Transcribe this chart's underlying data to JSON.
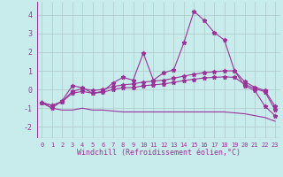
{
  "xlabel": "Windchill (Refroidissement éolien,°C)",
  "background_color": "#c8ecec",
  "grid_color": "#b0c8c8",
  "line_color": "#993399",
  "xlim": [
    -0.5,
    23.5
  ],
  "ylim": [
    -2.6,
    4.7
  ],
  "xticks": [
    0,
    1,
    2,
    3,
    4,
    5,
    6,
    7,
    8,
    9,
    10,
    11,
    12,
    13,
    14,
    15,
    16,
    17,
    18,
    19,
    20,
    21,
    22,
    23
  ],
  "yticks": [
    -2,
    -1,
    0,
    1,
    2,
    3,
    4
  ],
  "s1_x": [
    0,
    1,
    2,
    3,
    4,
    5,
    6,
    7,
    8,
    9,
    10,
    11,
    12,
    13,
    14,
    15,
    16,
    17,
    18,
    19,
    20,
    21,
    22,
    23
  ],
  "s1_y": [
    -0.7,
    -1.0,
    -0.6,
    0.2,
    0.1,
    -0.2,
    -0.1,
    0.35,
    0.65,
    0.5,
    1.95,
    0.5,
    0.9,
    1.05,
    2.5,
    4.2,
    3.7,
    3.05,
    2.65,
    1.0,
    0.2,
    -0.05,
    -0.9,
    -1.4
  ],
  "s2_x": [
    0,
    1,
    2,
    3,
    4,
    5,
    6,
    7,
    8,
    9,
    10,
    11,
    12,
    13,
    14,
    15,
    16,
    17,
    18,
    19,
    20,
    21,
    22,
    23
  ],
  "s2_y": [
    -0.7,
    -0.85,
    -0.65,
    -0.1,
    0.05,
    -0.05,
    0.0,
    0.15,
    0.25,
    0.3,
    0.4,
    0.45,
    0.5,
    0.6,
    0.72,
    0.82,
    0.9,
    0.95,
    1.0,
    1.0,
    0.42,
    0.12,
    -0.05,
    -0.9
  ],
  "s3_x": [
    0,
    1,
    2,
    3,
    4,
    5,
    6,
    7,
    8,
    9,
    10,
    11,
    12,
    13,
    14,
    15,
    16,
    17,
    18,
    19,
    20,
    21,
    22,
    23
  ],
  "s3_y": [
    -0.7,
    -0.85,
    -0.65,
    -0.2,
    -0.1,
    -0.2,
    -0.15,
    0.0,
    0.1,
    0.1,
    0.2,
    0.25,
    0.3,
    0.38,
    0.48,
    0.55,
    0.62,
    0.65,
    0.68,
    0.65,
    0.28,
    0.05,
    -0.12,
    -1.1
  ],
  "s4_x": [
    0,
    1,
    2,
    3,
    4,
    5,
    6,
    7,
    8,
    9,
    10,
    11,
    12,
    13,
    14,
    15,
    16,
    17,
    18,
    19,
    20,
    21,
    22,
    23
  ],
  "s4_y": [
    -0.7,
    -1.0,
    -1.1,
    -1.1,
    -1.0,
    -1.1,
    -1.1,
    -1.15,
    -1.2,
    -1.2,
    -1.2,
    -1.2,
    -1.2,
    -1.2,
    -1.2,
    -1.2,
    -1.2,
    -1.2,
    -1.2,
    -1.25,
    -1.3,
    -1.4,
    -1.5,
    -1.7
  ]
}
